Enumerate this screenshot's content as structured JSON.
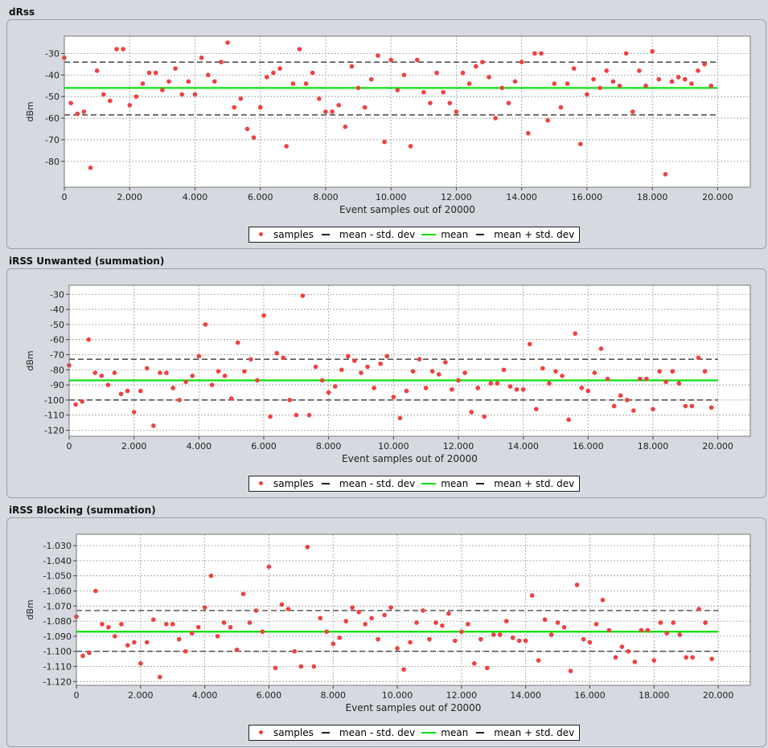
{
  "legend": {
    "samples": "samples",
    "mean_minus": "mean - std. dev",
    "mean": "mean",
    "mean_plus": "mean + std. dev"
  },
  "colors": {
    "samples": "#f04040",
    "mean": "#00e000",
    "std": "#222222",
    "grid": "#9a9a9a"
  },
  "chart_data": [
    {
      "type": "scatter",
      "title": "dRss",
      "xlabel": "Event samples out of 20000",
      "ylabel": "dBm",
      "xlim": [
        0,
        21000
      ],
      "ylim": [
        -92,
        -22
      ],
      "xticks": [
        0,
        2000,
        4000,
        6000,
        8000,
        10000,
        12000,
        14000,
        16000,
        18000,
        20000
      ],
      "xtick_labels": [
        "0",
        "2.000",
        "4.000",
        "6.000",
        "8.000",
        "10.000",
        "12.000",
        "14.000",
        "16.000",
        "18.000",
        "20.000"
      ],
      "yticks": [
        -30,
        -40,
        -50,
        -60,
        -70,
        -80
      ],
      "ytick_labels": [
        "-30",
        "-40",
        "-50",
        "-60",
        "-70",
        "-80"
      ],
      "grid": true,
      "legend_position": "bottom",
      "mean": -46,
      "mean_minus_std": -58.5,
      "mean_plus_std": -34,
      "x": [
        0,
        200,
        400,
        600,
        800,
        1000,
        1200,
        1400,
        1600,
        1800,
        2000,
        2200,
        2400,
        2600,
        2800,
        3000,
        3200,
        3400,
        3600,
        3800,
        4000,
        4200,
        4400,
        4600,
        4800,
        5000,
        5200,
        5400,
        5600,
        5800,
        6000,
        6200,
        6400,
        6600,
        6800,
        7000,
        7200,
        7400,
        7600,
        7800,
        8000,
        8200,
        8400,
        8600,
        8800,
        9000,
        9200,
        9400,
        9600,
        9800,
        10000,
        10200,
        10400,
        10600,
        10800,
        11000,
        11200,
        11400,
        11600,
        11800,
        12000,
        12200,
        12400,
        12600,
        12800,
        13000,
        13200,
        13400,
        13600,
        13800,
        14000,
        14200,
        14400,
        14600,
        14800,
        15000,
        15200,
        15400,
        15600,
        15800,
        16000,
        16200,
        16400,
        16600,
        16800,
        17000,
        17200,
        17400,
        17600,
        17800,
        18000,
        18200,
        18400,
        18600,
        18800,
        19000,
        19200,
        19400,
        19600,
        19800
      ],
      "y": [
        -32,
        -53,
        -58,
        -57,
        -83,
        -38,
        -49,
        -52,
        -28,
        -28,
        -54,
        -50,
        -44,
        -39,
        -39,
        -47,
        -43,
        -37,
        -49,
        -43,
        -49,
        -32,
        -40,
        -43,
        -34,
        -25,
        -55,
        -51,
        -65,
        -69,
        -55,
        -41,
        -39,
        -37,
        -73,
        -44,
        -28,
        -44,
        -39,
        -51,
        -57,
        -57,
        -54,
        -64,
        -36,
        -46,
        -55,
        -42,
        -31,
        -71,
        -33,
        -47,
        -40,
        -73,
        -33,
        -48,
        -53,
        -39,
        -48,
        -53,
        -57,
        -39,
        -44,
        -36,
        -34,
        -41,
        -60,
        -46,
        -53,
        -43,
        -34,
        -67,
        -30,
        -30,
        -61,
        -44,
        -55,
        -44,
        -37,
        -72,
        -49,
        -42,
        -46,
        -38,
        -43,
        -45,
        -30,
        -57,
        -38,
        -45,
        -29,
        -42,
        -86,
        -43,
        -41,
        -42,
        -44,
        -38,
        -35,
        -45
      ]
    },
    {
      "type": "scatter",
      "title": "iRSS Unwanted (summation)",
      "xlabel": "Event samples out of 20000",
      "ylabel": "dBm",
      "xlim": [
        0,
        21000
      ],
      "ylim": [
        -124,
        -24
      ],
      "xticks": [
        0,
        2000,
        4000,
        6000,
        8000,
        10000,
        12000,
        14000,
        16000,
        18000,
        20000
      ],
      "xtick_labels": [
        "0",
        "2.000",
        "4.000",
        "6.000",
        "8.000",
        "10.000",
        "12.000",
        "14.000",
        "16.000",
        "18.000",
        "20.000"
      ],
      "yticks": [
        -30,
        -40,
        -50,
        -60,
        -70,
        -80,
        -90,
        -100,
        -110,
        -120
      ],
      "ytick_labels": [
        "-30",
        "-40",
        "-50",
        "-60",
        "-70",
        "-80",
        "-90",
        "-100",
        "-110",
        "-120"
      ],
      "grid": true,
      "legend_position": "bottom",
      "mean": -87,
      "mean_minus_std": -100,
      "mean_plus_std": -73,
      "x": [
        0,
        200,
        400,
        600,
        800,
        1000,
        1200,
        1400,
        1600,
        1800,
        2000,
        2200,
        2400,
        2600,
        2800,
        3000,
        3200,
        3400,
        3600,
        3800,
        4000,
        4200,
        4400,
        4600,
        4800,
        5000,
        5200,
        5400,
        5600,
        5800,
        6000,
        6200,
        6400,
        6600,
        6800,
        7000,
        7200,
        7400,
        7600,
        7800,
        8000,
        8200,
        8400,
        8600,
        8800,
        9000,
        9200,
        9400,
        9600,
        9800,
        10000,
        10200,
        10400,
        10600,
        10800,
        11000,
        11200,
        11400,
        11600,
        11800,
        12000,
        12200,
        12400,
        12600,
        12800,
        13000,
        13200,
        13400,
        13600,
        13800,
        14000,
        14200,
        14400,
        14600,
        14800,
        15000,
        15200,
        15400,
        15600,
        15800,
        16000,
        16200,
        16400,
        16600,
        16800,
        17000,
        17200,
        17400,
        17600,
        17800,
        18000,
        18200,
        18400,
        18600,
        18800,
        19000,
        19200,
        19400,
        19600,
        19800
      ],
      "y": [
        -77,
        -103,
        -101,
        -60,
        -82,
        -84,
        -90,
        -82,
        -96,
        -94,
        -108,
        -94,
        -79,
        -117,
        -82,
        -82,
        -92,
        -100,
        -88,
        -84,
        -71,
        -50,
        -90,
        -81,
        -84,
        -99,
        -62,
        -81,
        -73,
        -87,
        -44,
        -111,
        -69,
        -72,
        -100,
        -110,
        -31,
        -110,
        -78,
        -87,
        -95,
        -91,
        -80,
        -71,
        -74,
        -82,
        -78,
        -92,
        -76,
        -71,
        -98,
        -112,
        -94,
        -81,
        -73,
        -92,
        -81,
        -83,
        -75,
        -93,
        -87,
        -82,
        -108,
        -92,
        -111,
        -89,
        -89,
        -80,
        -91,
        -93,
        -93,
        -63,
        -106,
        -79,
        -89,
        -81,
        -84,
        -113,
        -56,
        -92,
        -94,
        -82,
        -66,
        -86,
        -104,
        -97,
        -100,
        -107,
        -86,
        -86,
        -106,
        -81,
        -88,
        -81,
        -89,
        -104,
        -104,
        -72,
        -81,
        -105
      ]
    },
    {
      "type": "scatter",
      "title": "iRSS Blocking (summation)",
      "xlabel": "Event samples out of 20000",
      "ylabel": "dBm",
      "xlim": [
        0,
        21000
      ],
      "ylim": [
        -1.1225,
        -1.0225
      ],
      "xticks": [
        0,
        2000,
        4000,
        6000,
        8000,
        10000,
        12000,
        14000,
        16000,
        18000,
        20000
      ],
      "xtick_labels": [
        "0",
        "2.000",
        "4.000",
        "6.000",
        "8.000",
        "10.000",
        "12.000",
        "14.000",
        "16.000",
        "18.000",
        "20.000"
      ],
      "yticks": [
        -1.03,
        -1.04,
        -1.05,
        -1.06,
        -1.07,
        -1.08,
        -1.09,
        -1.1,
        -1.11,
        -1.12
      ],
      "ytick_labels": [
        "-1.030",
        "-1.040",
        "-1.050",
        "-1.060",
        "-1.070",
        "-1.080",
        "-1.090",
        "-1.100",
        "-1.110",
        "-1.120"
      ],
      "grid": true,
      "legend_position": "bottom",
      "mean": -1.087,
      "mean_minus_std": -1.1,
      "mean_plus_std": -1.073,
      "x": [
        0,
        200,
        400,
        600,
        800,
        1000,
        1200,
        1400,
        1600,
        1800,
        2000,
        2200,
        2400,
        2600,
        2800,
        3000,
        3200,
        3400,
        3600,
        3800,
        4000,
        4200,
        4400,
        4600,
        4800,
        5000,
        5200,
        5400,
        5600,
        5800,
        6000,
        6200,
        6400,
        6600,
        6800,
        7000,
        7200,
        7400,
        7600,
        7800,
        8000,
        8200,
        8400,
        8600,
        8800,
        9000,
        9200,
        9400,
        9600,
        9800,
        10000,
        10200,
        10400,
        10600,
        10800,
        11000,
        11200,
        11400,
        11600,
        11800,
        12000,
        12200,
        12400,
        12600,
        12800,
        13000,
        13200,
        13400,
        13600,
        13800,
        14000,
        14200,
        14400,
        14600,
        14800,
        15000,
        15200,
        15400,
        15600,
        15800,
        16000,
        16200,
        16400,
        16600,
        16800,
        17000,
        17200,
        17400,
        17600,
        17800,
        18000,
        18200,
        18400,
        18600,
        18800,
        19000,
        19200,
        19400,
        19600,
        19800
      ],
      "y": [
        -1.077,
        -1.103,
        -1.101,
        -1.06,
        -1.082,
        -1.084,
        -1.09,
        -1.082,
        -1.096,
        -1.094,
        -1.108,
        -1.094,
        -1.079,
        -1.117,
        -1.082,
        -1.082,
        -1.092,
        -1.1,
        -1.088,
        -1.084,
        -1.071,
        -1.05,
        -1.09,
        -1.081,
        -1.084,
        -1.099,
        -1.062,
        -1.081,
        -1.073,
        -1.087,
        -1.044,
        -1.111,
        -1.069,
        -1.072,
        -1.1,
        -1.11,
        -1.031,
        -1.11,
        -1.078,
        -1.087,
        -1.095,
        -1.091,
        -1.08,
        -1.071,
        -1.074,
        -1.082,
        -1.078,
        -1.092,
        -1.076,
        -1.071,
        -1.098,
        -1.112,
        -1.094,
        -1.081,
        -1.073,
        -1.092,
        -1.081,
        -1.083,
        -1.075,
        -1.093,
        -1.087,
        -1.082,
        -1.108,
        -1.092,
        -1.111,
        -1.089,
        -1.089,
        -1.08,
        -1.091,
        -1.093,
        -1.093,
        -1.063,
        -1.106,
        -1.079,
        -1.089,
        -1.081,
        -1.084,
        -1.113,
        -1.056,
        -1.092,
        -1.094,
        -1.082,
        -1.066,
        -1.086,
        -1.104,
        -1.097,
        -1.1,
        -1.107,
        -1.086,
        -1.086,
        -1.106,
        -1.081,
        -1.088,
        -1.081,
        -1.089,
        -1.104,
        -1.104,
        -1.072,
        -1.081,
        -1.105
      ]
    }
  ]
}
